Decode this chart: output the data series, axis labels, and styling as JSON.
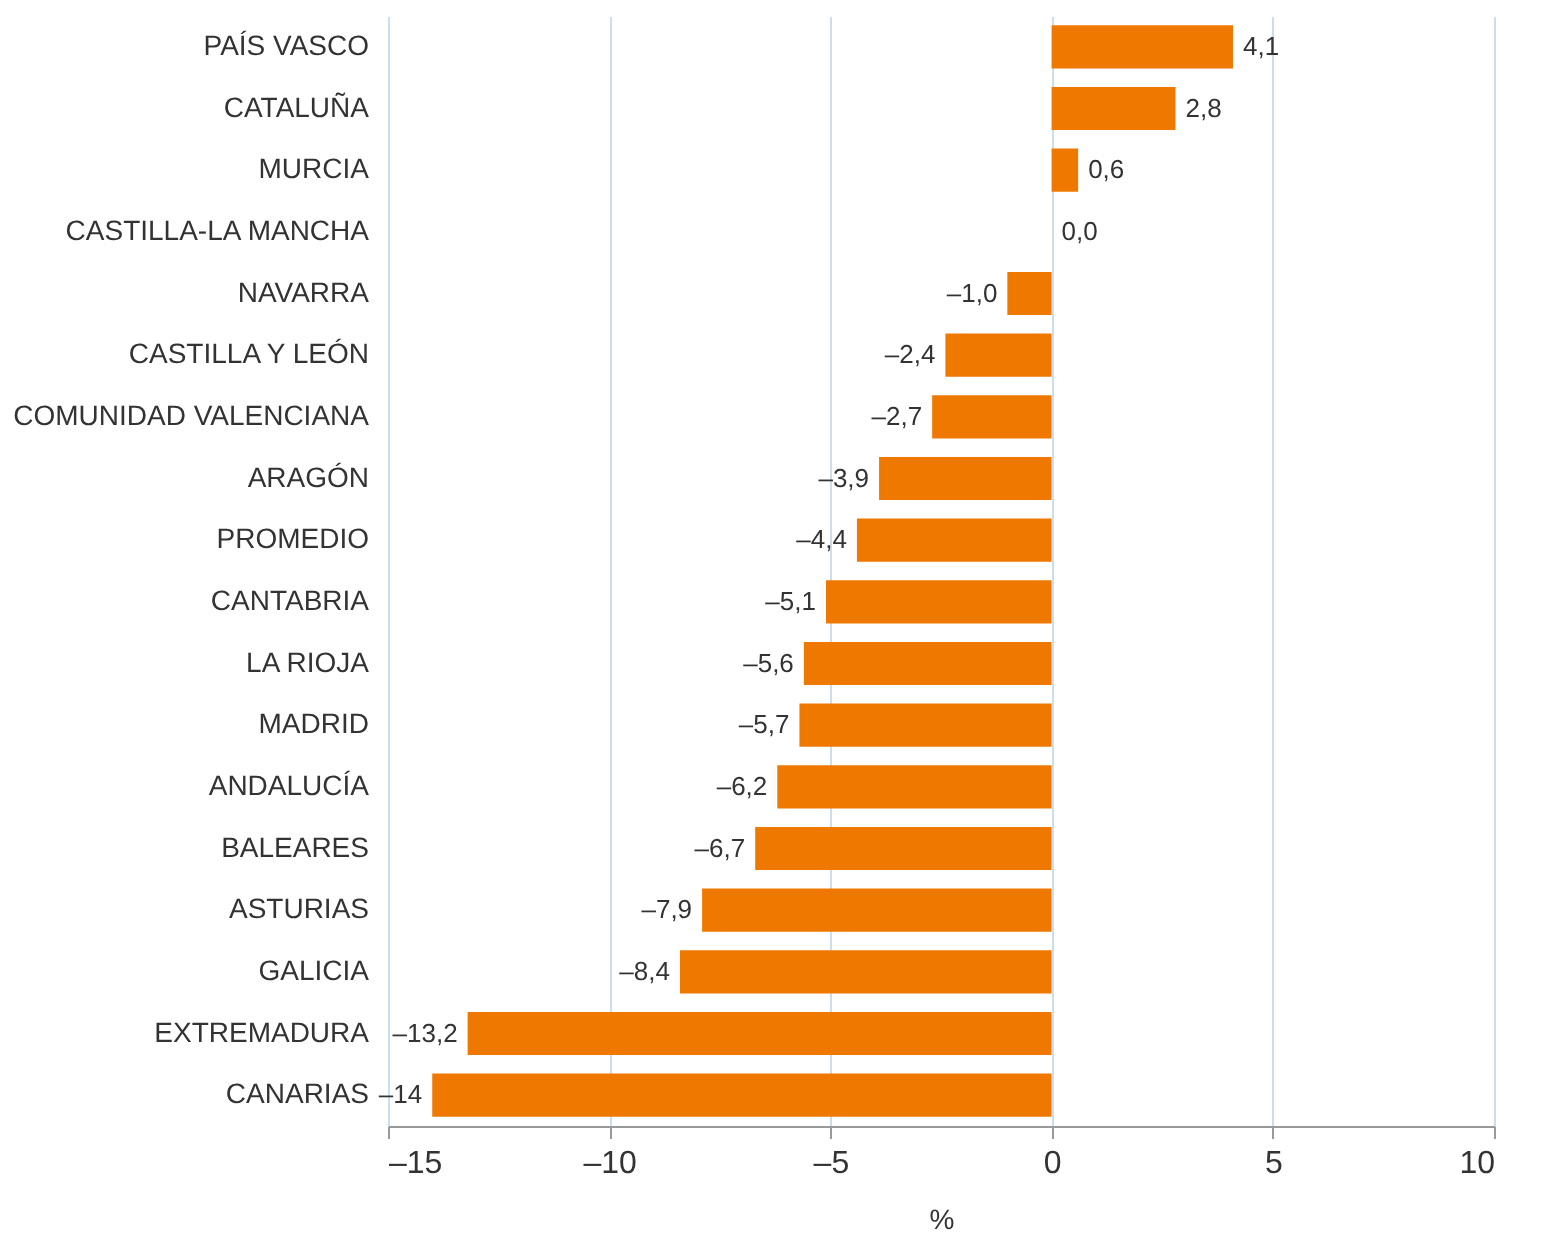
{
  "chart_data": {
    "type": "bar",
    "orientation": "horizontal",
    "xlabel": "%",
    "categories": [
      "PAÍS VASCO",
      "CATALUÑA",
      "MURCIA",
      "CASTILLA-LA MANCHA",
      "NAVARRA",
      "CASTILLA Y LEÓN",
      "COMUNIDAD VALENCIANA",
      "ARAGÓN",
      "PROMEDIO",
      "CANTABRIA",
      "LA RIOJA",
      "MADRID",
      "ANDALUCÍA",
      "BALEARES",
      "ASTURIAS",
      "GALICIA",
      "EXTREMADURA",
      "CANARIAS"
    ],
    "values": [
      4.1,
      2.8,
      0.6,
      0.0,
      -1.0,
      -2.4,
      -2.7,
      -3.9,
      -4.4,
      -5.1,
      -5.6,
      -5.7,
      -6.2,
      -6.7,
      -7.9,
      -8.4,
      -13.2,
      -14
    ],
    "value_labels": [
      "4,1",
      "2,8",
      "0,6",
      "0,0",
      "–1,0",
      "–2,4",
      "–2,7",
      "–3,9",
      "–4,4",
      "–5,1",
      "–5,6",
      "–5,7",
      "–6,2",
      "–6,7",
      "–7,9",
      "–8,4",
      "–13,2",
      "–14"
    ],
    "color": "#ef7800",
    "xlim": [
      -15,
      10
    ],
    "xticks": [
      {
        "value": -15,
        "label": "–15"
      },
      {
        "value": -10,
        "label": "–10"
      },
      {
        "value": -5,
        "label": "–5"
      },
      0,
      5,
      10
    ],
    "grid": "x"
  }
}
